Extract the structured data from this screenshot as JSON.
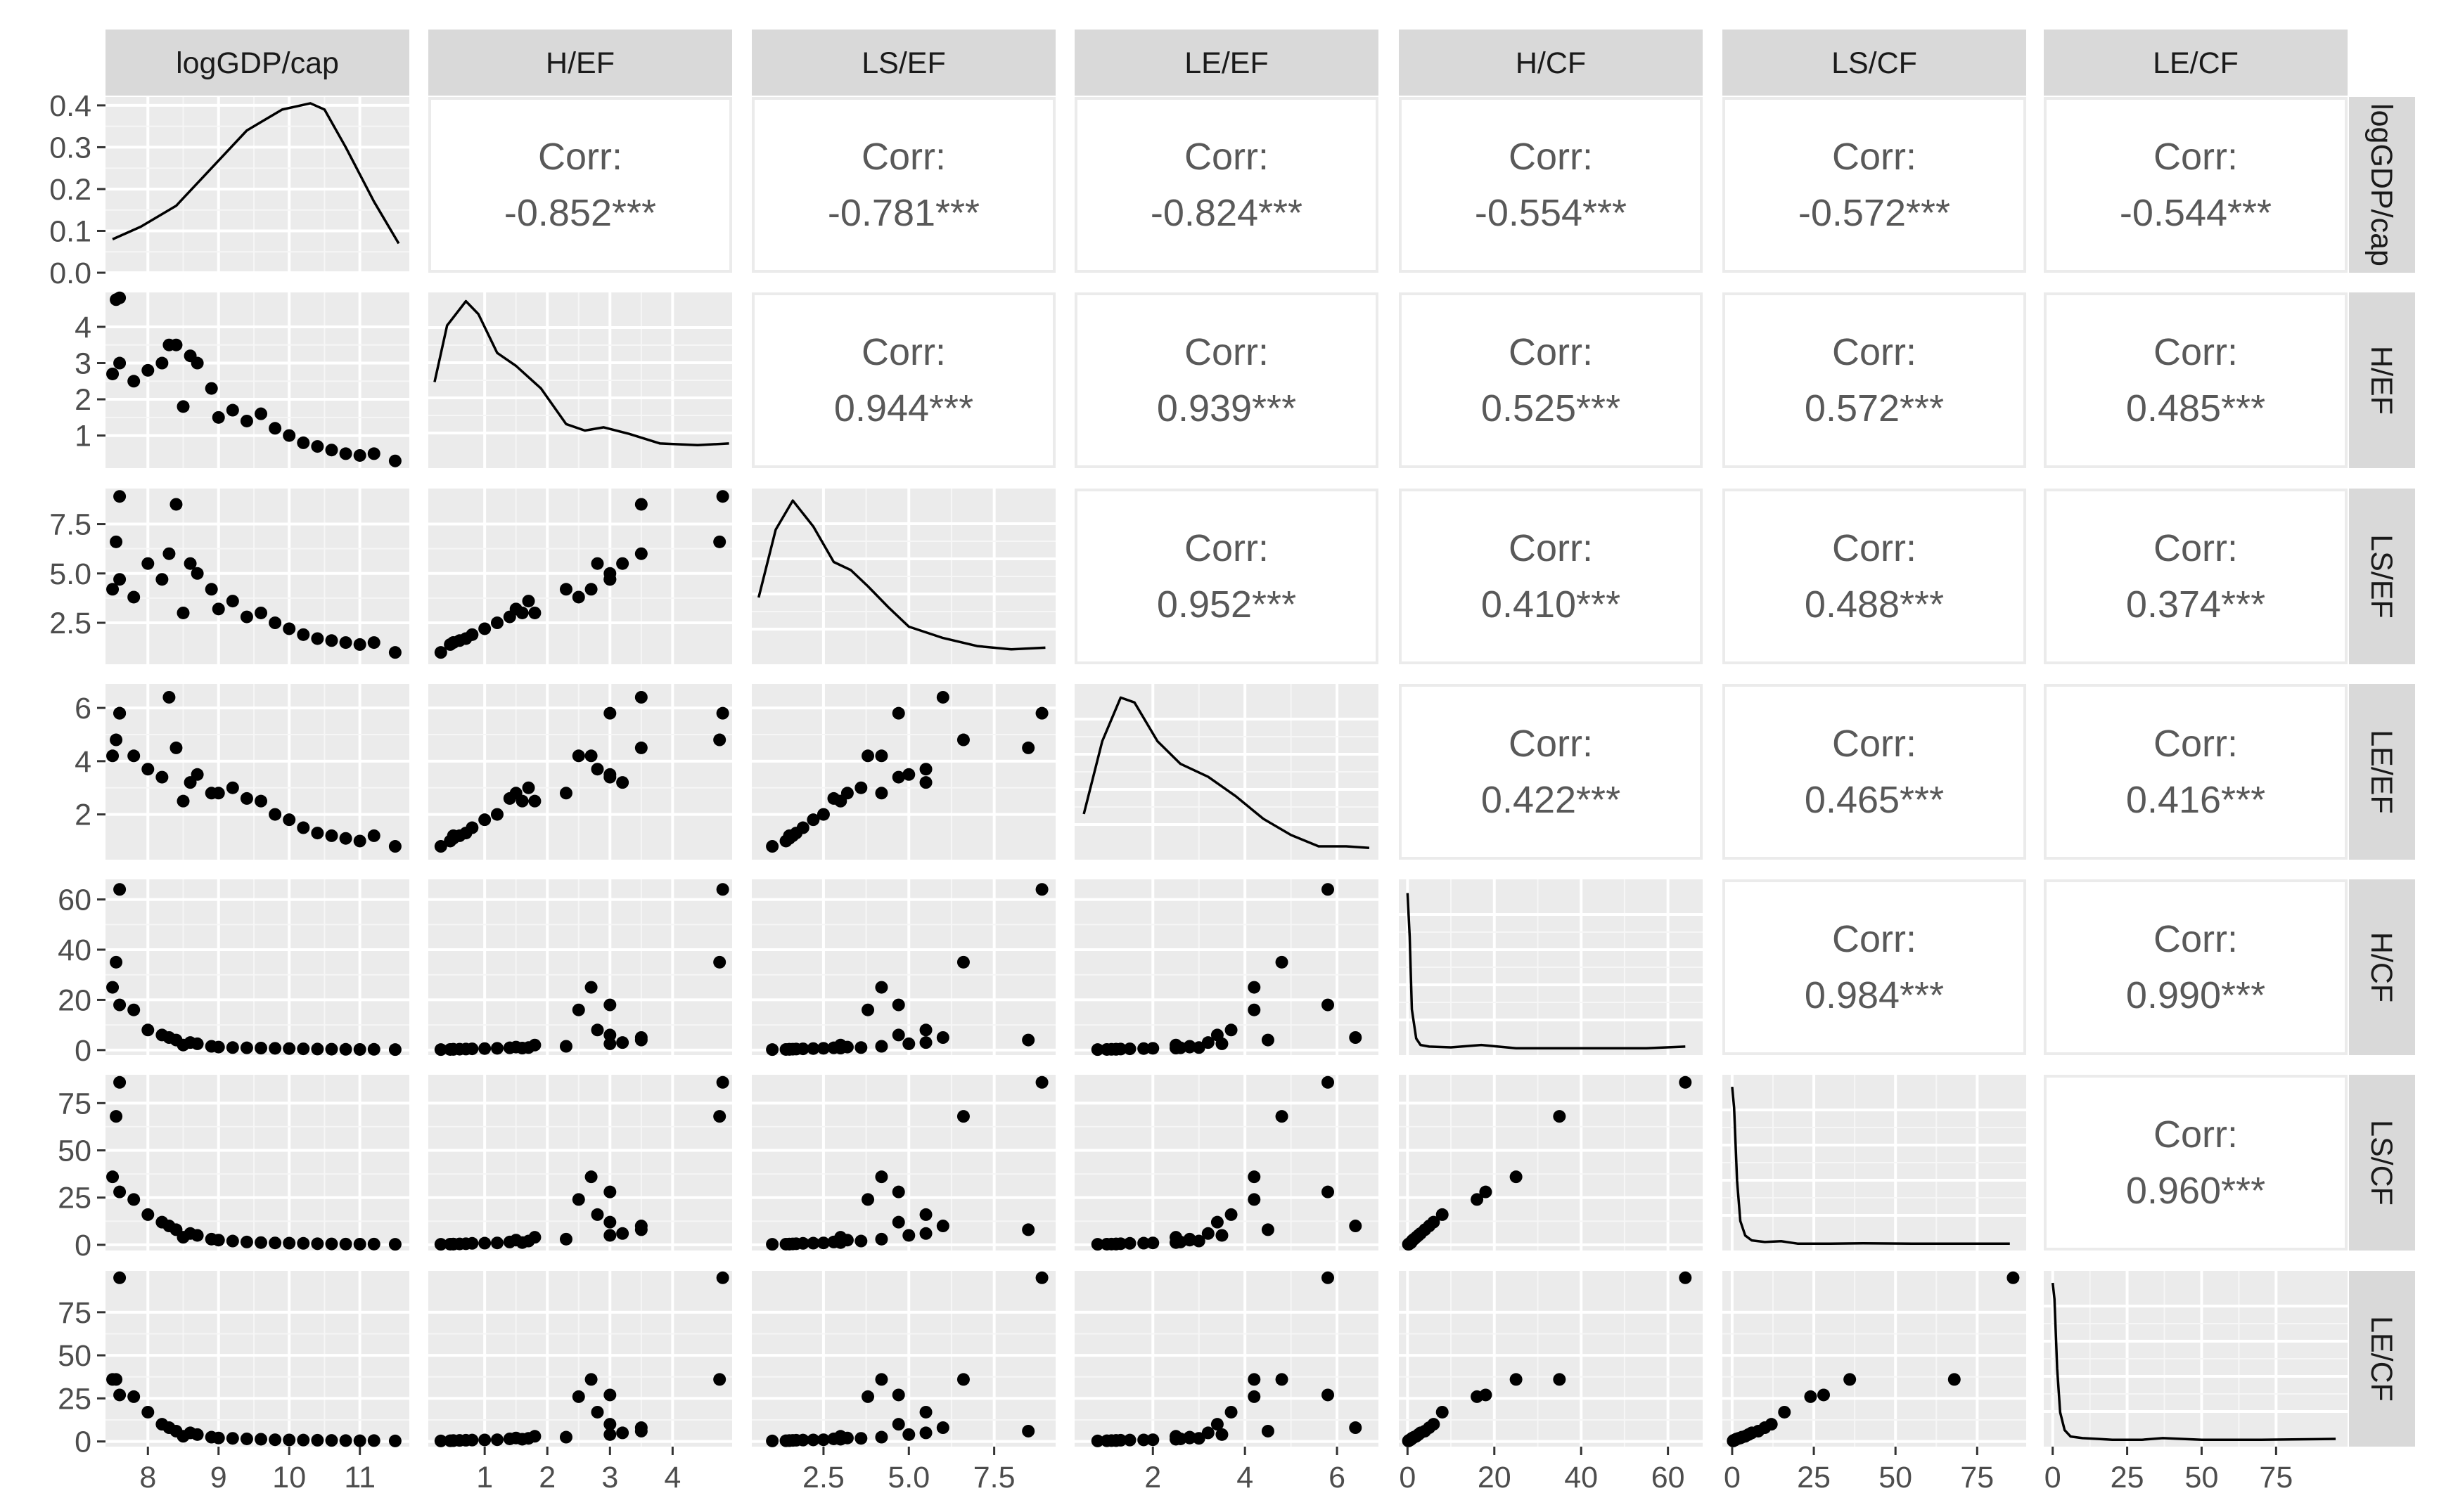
{
  "chart_data": {
    "type": "scatter",
    "title": "",
    "variables": [
      "logGDP/cap",
      "H/EF",
      "LS/EF",
      "LE/EF",
      "H/CF",
      "LS/CF",
      "LE/CF"
    ],
    "corr_label": "Corr:",
    "correlations": [
      {
        "row": 0,
        "col": 1,
        "text": "-0.852***"
      },
      {
        "row": 0,
        "col": 2,
        "text": "-0.781***"
      },
      {
        "row": 0,
        "col": 3,
        "text": "-0.824***"
      },
      {
        "row": 0,
        "col": 4,
        "text": "-0.554***"
      },
      {
        "row": 0,
        "col": 5,
        "text": "-0.572***"
      },
      {
        "row": 0,
        "col": 6,
        "text": "-0.544***"
      },
      {
        "row": 1,
        "col": 2,
        "text": "0.944***"
      },
      {
        "row": 1,
        "col": 3,
        "text": "0.939***"
      },
      {
        "row": 1,
        "col": 4,
        "text": "0.525***"
      },
      {
        "row": 1,
        "col": 5,
        "text": "0.572***"
      },
      {
        "row": 1,
        "col": 6,
        "text": "0.485***"
      },
      {
        "row": 2,
        "col": 3,
        "text": "0.952***"
      },
      {
        "row": 2,
        "col": 4,
        "text": "0.410***"
      },
      {
        "row": 2,
        "col": 5,
        "text": "0.488***"
      },
      {
        "row": 2,
        "col": 6,
        "text": "0.374***"
      },
      {
        "row": 3,
        "col": 4,
        "text": "0.422***"
      },
      {
        "row": 3,
        "col": 5,
        "text": "0.465***"
      },
      {
        "row": 3,
        "col": 6,
        "text": "0.416***"
      },
      {
        "row": 4,
        "col": 5,
        "text": "0.984***"
      },
      {
        "row": 4,
        "col": 6,
        "text": "0.990***"
      },
      {
        "row": 5,
        "col": 6,
        "text": "0.960***"
      }
    ],
    "axes": [
      {
        "range": [
          7.4,
          11.7
        ],
        "ticks": [
          8,
          9,
          10,
          11
        ],
        "labels": [
          "8",
          "9",
          "10",
          "11"
        ]
      },
      {
        "range": [
          0.1,
          4.95
        ],
        "ticks": [
          1,
          2,
          3,
          4
        ],
        "labels": [
          "1",
          "2",
          "3",
          "4"
        ]
      },
      {
        "range": [
          0.4,
          9.3
        ],
        "ticks": [
          2.5,
          5.0,
          7.5
        ],
        "labels": [
          "2.5",
          "5.0",
          "7.5"
        ]
      },
      {
        "range": [
          0.3,
          6.9
        ],
        "ticks": [
          2,
          4,
          6
        ],
        "labels": [
          "2",
          "4",
          "6"
        ]
      },
      {
        "range": [
          -2,
          68
        ],
        "ticks": [
          0,
          20,
          40,
          60
        ],
        "labels": [
          "0",
          "20",
          "40",
          "60"
        ]
      },
      {
        "range": [
          -3,
          90
        ],
        "ticks": [
          0,
          25,
          50,
          75
        ],
        "labels": [
          "0",
          "25",
          "50",
          "75"
        ]
      },
      {
        "range": [
          -3,
          99
        ],
        "ticks": [
          0,
          25,
          50,
          75
        ],
        "labels": [
          "0",
          "25",
          "50",
          "75"
        ]
      }
    ],
    "density_axis": {
      "range": [
        0,
        0.42
      ],
      "ticks": [
        0.0,
        0.1,
        0.2,
        0.3,
        0.4
      ],
      "labels": [
        "0.0",
        "0.1",
        "0.2",
        "0.3",
        "0.4"
      ]
    },
    "densities": [
      {
        "x": [
          7.5,
          7.9,
          8.4,
          8.9,
          9.4,
          9.9,
          10.3,
          10.5,
          10.8,
          11.2,
          11.55
        ],
        "y": [
          0.08,
          0.11,
          0.16,
          0.25,
          0.34,
          0.39,
          0.405,
          0.39,
          0.3,
          0.17,
          0.07
        ]
      },
      {
        "x": [
          0.2,
          0.4,
          0.7,
          0.9,
          1.2,
          1.5,
          1.9,
          2.3,
          2.6,
          2.9,
          3.3,
          3.8,
          4.4,
          4.9
        ],
        "y": [
          0.5,
          0.85,
          1.0,
          0.92,
          0.68,
          0.6,
          0.46,
          0.24,
          0.2,
          0.22,
          0.18,
          0.12,
          0.11,
          0.12
        ]
      },
      {
        "x": [
          0.6,
          1.1,
          1.6,
          2.2,
          2.8,
          3.3,
          3.8,
          4.4,
          5.0,
          6.0,
          7.0,
          8.0,
          9.0
        ],
        "y": [
          0.38,
          0.8,
          0.98,
          0.82,
          0.6,
          0.55,
          0.45,
          0.32,
          0.2,
          0.13,
          0.08,
          0.06,
          0.07
        ]
      },
      {
        "x": [
          0.5,
          0.9,
          1.3,
          1.6,
          2.1,
          2.6,
          3.2,
          3.8,
          4.4,
          5.0,
          5.6,
          6.2,
          6.7
        ],
        "y": [
          0.25,
          0.7,
          0.97,
          0.94,
          0.7,
          0.56,
          0.48,
          0.36,
          0.22,
          0.12,
          0.05,
          0.05,
          0.04
        ]
      },
      {
        "x": [
          0.0,
          0.5,
          1.0,
          2.0,
          3.0,
          5.0,
          10.0,
          17.0,
          25.0,
          35.0,
          45.0,
          55.0,
          64.0
        ],
        "y": [
          0.97,
          0.7,
          0.25,
          0.07,
          0.03,
          0.02,
          0.015,
          0.03,
          0.01,
          0.01,
          0.01,
          0.01,
          0.02
        ]
      },
      {
        "x": [
          0.0,
          0.6,
          1.5,
          2.5,
          4.0,
          6.0,
          10.0,
          15.0,
          20.0,
          30.0,
          40.0,
          55.0,
          68.0,
          85.0
        ],
        "y": [
          0.98,
          0.85,
          0.4,
          0.15,
          0.06,
          0.03,
          0.02,
          0.025,
          0.01,
          0.01,
          0.012,
          0.01,
          0.01,
          0.01
        ]
      },
      {
        "x": [
          0.0,
          0.6,
          1.5,
          2.5,
          4.0,
          6.0,
          10.0,
          15.0,
          20.0,
          30.0,
          37.0,
          50.0,
          70.0,
          95.0
        ],
        "y": [
          0.98,
          0.88,
          0.45,
          0.18,
          0.07,
          0.03,
          0.02,
          0.015,
          0.01,
          0.01,
          0.02,
          0.01,
          0.01,
          0.015
        ]
      }
    ],
    "observations": [
      [
        7.6,
        4.8,
        8.9,
        5.8,
        64.0,
        86.0,
        95.0
      ],
      [
        7.55,
        4.75,
        6.6,
        4.8,
        35.0,
        68.0,
        36.0
      ],
      [
        7.5,
        2.7,
        4.2,
        4.2,
        25.0,
        36.0,
        36.0
      ],
      [
        7.6,
        3.0,
        4.7,
        5.8,
        18.0,
        28.0,
        27.0
      ],
      [
        7.8,
        2.5,
        3.8,
        4.2,
        16.0,
        24.0,
        26.0
      ],
      [
        8.0,
        2.8,
        5.5,
        3.7,
        8.0,
        16.0,
        17.0
      ],
      [
        8.2,
        3.0,
        4.7,
        3.4,
        6.0,
        12.0,
        10.0
      ],
      [
        8.3,
        3.5,
        6.0,
        6.4,
        5.0,
        10.0,
        8.0
      ],
      [
        8.4,
        3.5,
        8.5,
        4.5,
        4.0,
        8.0,
        6.0
      ],
      [
        8.6,
        3.2,
        5.5,
        3.2,
        3.0,
        6.0,
        5.0
      ],
      [
        8.7,
        3.0,
        5.0,
        3.5,
        2.5,
        5.0,
        4.0
      ],
      [
        8.5,
        1.8,
        3.0,
        2.5,
        2.0,
        4.0,
        3.0
      ],
      [
        8.9,
        2.3,
        4.2,
        2.8,
        1.5,
        3.0,
        2.5
      ],
      [
        9.0,
        1.5,
        3.2,
        2.8,
        1.2,
        2.5,
        2.0
      ],
      [
        9.2,
        1.7,
        3.6,
        3.0,
        1.0,
        2.0,
        1.8
      ],
      [
        9.4,
        1.4,
        2.8,
        2.6,
        0.9,
        1.5,
        1.5
      ],
      [
        9.6,
        1.6,
        3.0,
        2.5,
        0.8,
        1.2,
        1.3
      ],
      [
        9.8,
        1.2,
        2.5,
        2.0,
        0.7,
        1.0,
        1.0
      ],
      [
        10.0,
        1.0,
        2.2,
        1.8,
        0.6,
        0.9,
        0.9
      ],
      [
        10.2,
        0.8,
        1.9,
        1.5,
        0.5,
        0.8,
        0.8
      ],
      [
        10.4,
        0.7,
        1.7,
        1.3,
        0.4,
        0.6,
        0.7
      ],
      [
        10.6,
        0.6,
        1.6,
        1.2,
        0.35,
        0.5,
        0.6
      ],
      [
        10.8,
        0.5,
        1.5,
        1.1,
        0.3,
        0.4,
        0.5
      ],
      [
        11.0,
        0.45,
        1.4,
        1.0,
        0.25,
        0.35,
        0.4
      ],
      [
        11.2,
        0.5,
        1.5,
        1.2,
        0.3,
        0.4,
        0.5
      ],
      [
        11.5,
        0.3,
        1.0,
        0.8,
        0.2,
        0.3,
        0.3
      ]
    ]
  }
}
